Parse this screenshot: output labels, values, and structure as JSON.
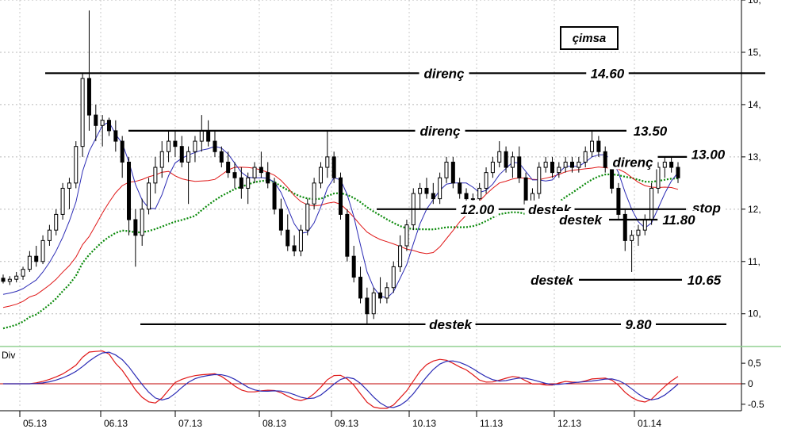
{
  "chart_data": {
    "type": "candlestick",
    "title": "çimsa",
    "indicator_label": "Div",
    "price_axis": {
      "ticks": [
        "10,",
        "11,",
        "12,",
        "13,",
        "14,",
        "15,",
        "16,"
      ],
      "ylim": [
        9.45,
        16.0
      ]
    },
    "indicator_axis": {
      "ticks": [
        "0,5",
        "0",
        "-0.5"
      ],
      "ylim": [
        -0.6,
        0.85
      ]
    },
    "x_ticks": [
      "05.13",
      "06.13",
      "07.13",
      "08.13",
      "09.13",
      "10.13",
      "11.13",
      "12.13",
      "01.14"
    ],
    "candles": [
      [
        0,
        10.68,
        10.75,
        10.58,
        10.62
      ],
      [
        1,
        10.62,
        10.72,
        10.55,
        10.66
      ],
      [
        2,
        10.66,
        10.8,
        10.6,
        10.72
      ],
      [
        3,
        10.72,
        10.9,
        10.65,
        10.85
      ],
      [
        4,
        10.85,
        11.2,
        10.8,
        11.1
      ],
      [
        5,
        11.1,
        11.3,
        10.9,
        11.0
      ],
      [
        6,
        11.0,
        11.5,
        10.95,
        11.4
      ],
      [
        7,
        11.4,
        11.7,
        11.3,
        11.6
      ],
      [
        8,
        11.6,
        12.0,
        11.5,
        11.9
      ],
      [
        9,
        11.9,
        12.5,
        11.8,
        12.4
      ],
      [
        10,
        12.4,
        12.6,
        12.0,
        12.5
      ],
      [
        11,
        12.5,
        13.3,
        12.4,
        13.2
      ],
      [
        12,
        13.2,
        14.6,
        13.0,
        14.5
      ],
      [
        13,
        14.5,
        15.8,
        13.5,
        13.8
      ],
      [
        14,
        13.8,
        14.0,
        13.3,
        13.6
      ],
      [
        15,
        13.6,
        13.8,
        13.2,
        13.7
      ],
      [
        16,
        13.7,
        13.75,
        13.4,
        13.5
      ],
      [
        17,
        13.5,
        13.7,
        13.1,
        13.3
      ],
      [
        18,
        13.3,
        13.4,
        12.6,
        12.9
      ],
      [
        19,
        12.9,
        13.0,
        11.5,
        11.8
      ],
      [
        20,
        11.8,
        12.0,
        10.9,
        11.5
      ],
      [
        21,
        11.5,
        12.2,
        11.3,
        12.0
      ],
      [
        22,
        12.0,
        12.6,
        11.9,
        12.5
      ],
      [
        23,
        12.5,
        13.0,
        12.3,
        12.8
      ],
      [
        24,
        12.8,
        13.3,
        12.6,
        13.1
      ],
      [
        25,
        13.1,
        13.5,
        12.9,
        13.3
      ],
      [
        26,
        13.3,
        13.5,
        13.0,
        13.2
      ],
      [
        27,
        13.2,
        13.4,
        12.8,
        12.9
      ],
      [
        28,
        12.9,
        13.2,
        12.1,
        13.1
      ],
      [
        29,
        13.1,
        13.4,
        12.9,
        13.3
      ],
      [
        30,
        13.3,
        13.8,
        13.1,
        13.5
      ],
      [
        31,
        13.5,
        13.7,
        13.2,
        13.3
      ],
      [
        32,
        13.3,
        13.5,
        13.0,
        13.1
      ],
      [
        33,
        13.1,
        13.2,
        12.8,
        12.9
      ],
      [
        34,
        12.9,
        13.1,
        12.6,
        12.7
      ],
      [
        35,
        12.7,
        12.9,
        12.4,
        12.6
      ],
      [
        36,
        12.6,
        12.8,
        12.2,
        12.4
      ],
      [
        37,
        12.4,
        12.7,
        12.1,
        12.6
      ],
      [
        38,
        12.6,
        12.9,
        12.5,
        12.8
      ],
      [
        39,
        12.8,
        13.1,
        12.6,
        12.7
      ],
      [
        40,
        12.7,
        12.9,
        12.4,
        12.5
      ],
      [
        41,
        12.5,
        12.6,
        11.9,
        12.0
      ],
      [
        42,
        12.0,
        12.2,
        11.5,
        11.6
      ],
      [
        43,
        11.6,
        11.9,
        11.2,
        11.3
      ],
      [
        44,
        11.3,
        11.5,
        11.1,
        11.2
      ],
      [
        45,
        11.2,
        11.7,
        11.1,
        11.6
      ],
      [
        46,
        11.6,
        12.2,
        11.5,
        12.1
      ],
      [
        47,
        12.1,
        12.6,
        12.0,
        12.5
      ],
      [
        48,
        12.5,
        12.9,
        12.4,
        12.8
      ],
      [
        49,
        12.8,
        13.5,
        12.6,
        13.0
      ],
      [
        50,
        13.0,
        13.1,
        12.5,
        12.6
      ],
      [
        51,
        12.6,
        12.7,
        11.8,
        11.9
      ],
      [
        52,
        11.9,
        12.0,
        11.0,
        11.1
      ],
      [
        53,
        11.1,
        11.3,
        10.6,
        10.7
      ],
      [
        54,
        10.7,
        10.9,
        10.2,
        10.3
      ],
      [
        55,
        10.3,
        10.5,
        9.8,
        10.0
      ],
      [
        56,
        10.0,
        10.5,
        9.9,
        10.4
      ],
      [
        57,
        10.4,
        10.7,
        10.2,
        10.3
      ],
      [
        58,
        10.3,
        10.6,
        10.2,
        10.5
      ],
      [
        59,
        10.5,
        11.0,
        10.4,
        10.9
      ],
      [
        60,
        10.9,
        11.5,
        10.8,
        11.3
      ],
      [
        61,
        11.3,
        11.8,
        11.2,
        11.7
      ],
      [
        62,
        11.7,
        12.4,
        11.6,
        12.3
      ],
      [
        63,
        12.3,
        12.5,
        12.0,
        12.4
      ],
      [
        64,
        12.4,
        12.6,
        12.2,
        12.3
      ],
      [
        65,
        12.3,
        12.5,
        12.1,
        12.2
      ],
      [
        66,
        12.2,
        12.7,
        12.1,
        12.6
      ],
      [
        67,
        12.6,
        13.0,
        12.5,
        12.9
      ],
      [
        68,
        12.9,
        13.0,
        12.4,
        12.5
      ],
      [
        69,
        12.5,
        12.6,
        12.2,
        12.3
      ],
      [
        70,
        12.3,
        12.4,
        12.1,
        12.2
      ],
      [
        71,
        12.2,
        12.3,
        12.1,
        12.2
      ],
      [
        72,
        12.2,
        12.5,
        12.1,
        12.4
      ],
      [
        73,
        12.4,
        12.8,
        12.3,
        12.7
      ],
      [
        74,
        12.7,
        13.0,
        12.6,
        12.9
      ],
      [
        75,
        12.9,
        13.3,
        12.8,
        13.1
      ],
      [
        76,
        13.1,
        13.2,
        12.7,
        12.8
      ],
      [
        77,
        12.8,
        13.1,
        12.6,
        13.0
      ],
      [
        78,
        13.0,
        13.2,
        12.5,
        12.6
      ],
      [
        79,
        12.6,
        12.7,
        12.0,
        12.1
      ],
      [
        80,
        12.1,
        12.4,
        12.0,
        12.3
      ],
      [
        81,
        12.3,
        12.9,
        12.2,
        12.8
      ],
      [
        82,
        12.8,
        13.0,
        12.7,
        12.9
      ],
      [
        83,
        12.9,
        13.0,
        12.6,
        12.7
      ],
      [
        84,
        12.7,
        12.9,
        12.6,
        12.8
      ],
      [
        85,
        12.8,
        13.0,
        12.7,
        12.9
      ],
      [
        86,
        12.9,
        13.0,
        12.7,
        12.8
      ],
      [
        87,
        12.8,
        13.0,
        12.7,
        12.9
      ],
      [
        88,
        12.9,
        13.2,
        12.8,
        13.1
      ],
      [
        89,
        13.1,
        13.5,
        13.0,
        13.3
      ],
      [
        90,
        13.3,
        13.4,
        13.0,
        13.1
      ],
      [
        91,
        13.1,
        13.2,
        12.7,
        12.8
      ],
      [
        92,
        12.8,
        12.9,
        12.3,
        12.4
      ],
      [
        93,
        12.4,
        12.5,
        11.8,
        11.9
      ],
      [
        94,
        11.9,
        12.0,
        11.2,
        11.4
      ],
      [
        95,
        11.4,
        11.6,
        10.8,
        11.5
      ],
      [
        96,
        11.5,
        11.7,
        11.3,
        11.6
      ],
      [
        97,
        11.6,
        11.9,
        11.5,
        11.8
      ],
      [
        98,
        11.8,
        12.5,
        11.7,
        12.4
      ],
      [
        99,
        12.4,
        12.9,
        12.3,
        12.8
      ],
      [
        100,
        12.8,
        13.0,
        12.6,
        12.9
      ],
      [
        101,
        12.9,
        13.0,
        12.7,
        12.8
      ],
      [
        102,
        12.8,
        12.9,
        12.5,
        12.6
      ]
    ],
    "levels": [
      {
        "label": "direnç",
        "value_label": "14.60",
        "y": 14.6
      },
      {
        "label": "direnç",
        "value_label": "13.50",
        "y": 13.5
      },
      {
        "label": "direnç",
        "value_label": "13.00",
        "y": 13.0
      },
      {
        "label": "destek",
        "value_label": "12.00",
        "y": 12.0
      },
      {
        "label": "stop",
        "y": 12.0
      },
      {
        "label": "destek",
        "value_label": "11.80",
        "y": 11.8
      },
      {
        "label": "destek",
        "value_label": "10.65",
        "y": 10.65
      },
      {
        "label": "destek",
        "value_label": "9.80",
        "y": 9.8
      }
    ],
    "colors": {
      "ma_short": "#2b2bb5",
      "ma_mid": "#e01818",
      "ma_long": "#0a8a0a",
      "zero_line": "#c00000",
      "separator": "#90d090"
    }
  }
}
